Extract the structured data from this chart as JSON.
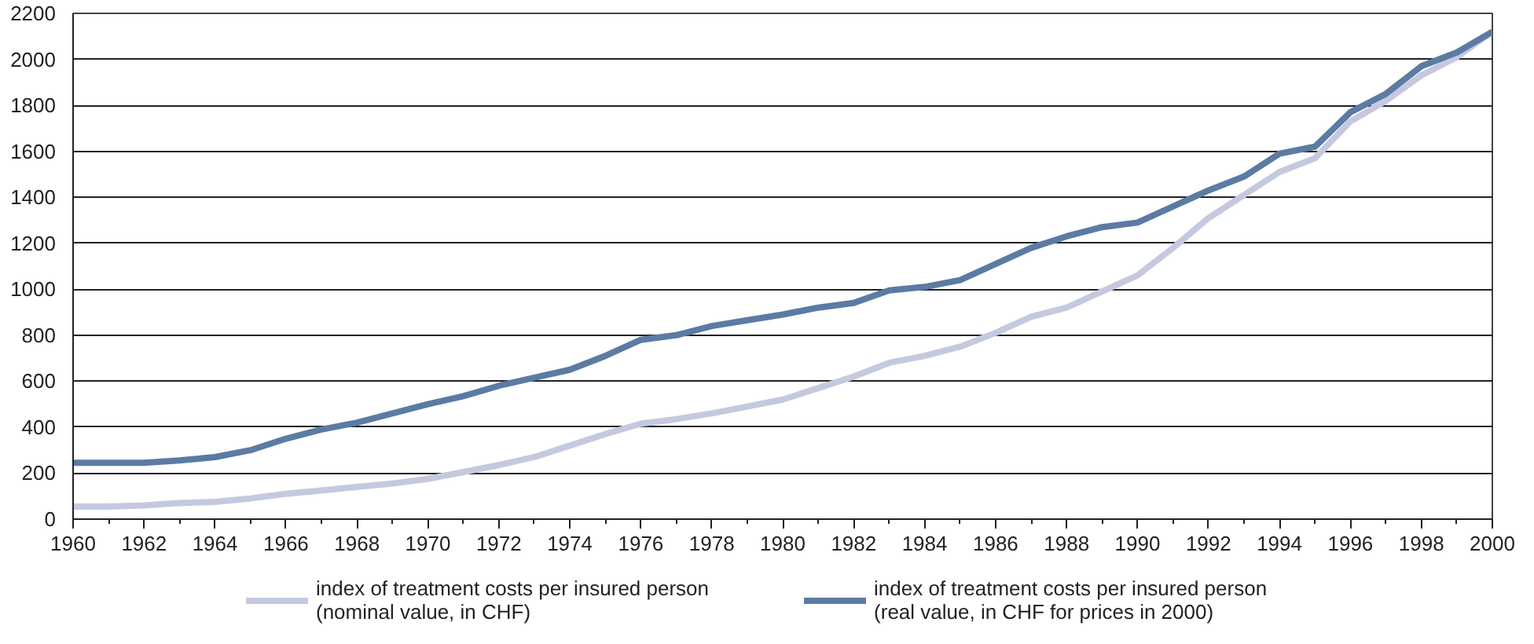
{
  "chart_data": {
    "type": "line",
    "x": [
      1960,
      1961,
      1962,
      1963,
      1964,
      1965,
      1966,
      1967,
      1968,
      1969,
      1970,
      1971,
      1972,
      1973,
      1974,
      1975,
      1976,
      1977,
      1978,
      1979,
      1980,
      1981,
      1982,
      1983,
      1984,
      1985,
      1986,
      1987,
      1988,
      1989,
      1990,
      1991,
      1992,
      1993,
      1994,
      1995,
      1996,
      1997,
      1998,
      1999,
      2000
    ],
    "series": [
      {
        "name": "index of treatment costs per insured person\n(nominal value, in CHF)",
        "color": "#c5c9e0",
        "values": [
          55,
          55,
          60,
          70,
          75,
          90,
          110,
          125,
          140,
          155,
          175,
          205,
          235,
          270,
          320,
          370,
          415,
          435,
          460,
          490,
          520,
          570,
          620,
          680,
          710,
          750,
          810,
          880,
          920,
          990,
          1060,
          1180,
          1310,
          1410,
          1510,
          1570,
          1730,
          1820,
          1930,
          2010,
          2120
        ]
      },
      {
        "name": "index of treatment costs per insured person\n(real value, in CHF for prices in 2000)",
        "color": "#5b7ba3",
        "values": [
          245,
          245,
          245,
          255,
          270,
          300,
          350,
          390,
          420,
          460,
          500,
          535,
          580,
          615,
          650,
          710,
          780,
          800,
          840,
          865,
          890,
          920,
          940,
          995,
          1010,
          1040,
          1110,
          1180,
          1230,
          1270,
          1290,
          1360,
          1430,
          1490,
          1590,
          1620,
          1770,
          1850,
          1970,
          2030,
          2120
        ]
      }
    ],
    "xlim": [
      1960,
      2000
    ],
    "xticks": [
      1960,
      1962,
      1964,
      1966,
      1968,
      1970,
      1972,
      1974,
      1976,
      1978,
      1980,
      1982,
      1984,
      1986,
      1988,
      1990,
      1992,
      1994,
      1996,
      1998,
      2000
    ],
    "ylim": [
      0,
      2200
    ],
    "yticks": [
      0,
      200,
      400,
      600,
      800,
      1000,
      1200,
      1400,
      1600,
      1800,
      2000,
      2200
    ],
    "grid": "y",
    "legend": "bottom",
    "line_style": "solid",
    "marker": "none"
  }
}
